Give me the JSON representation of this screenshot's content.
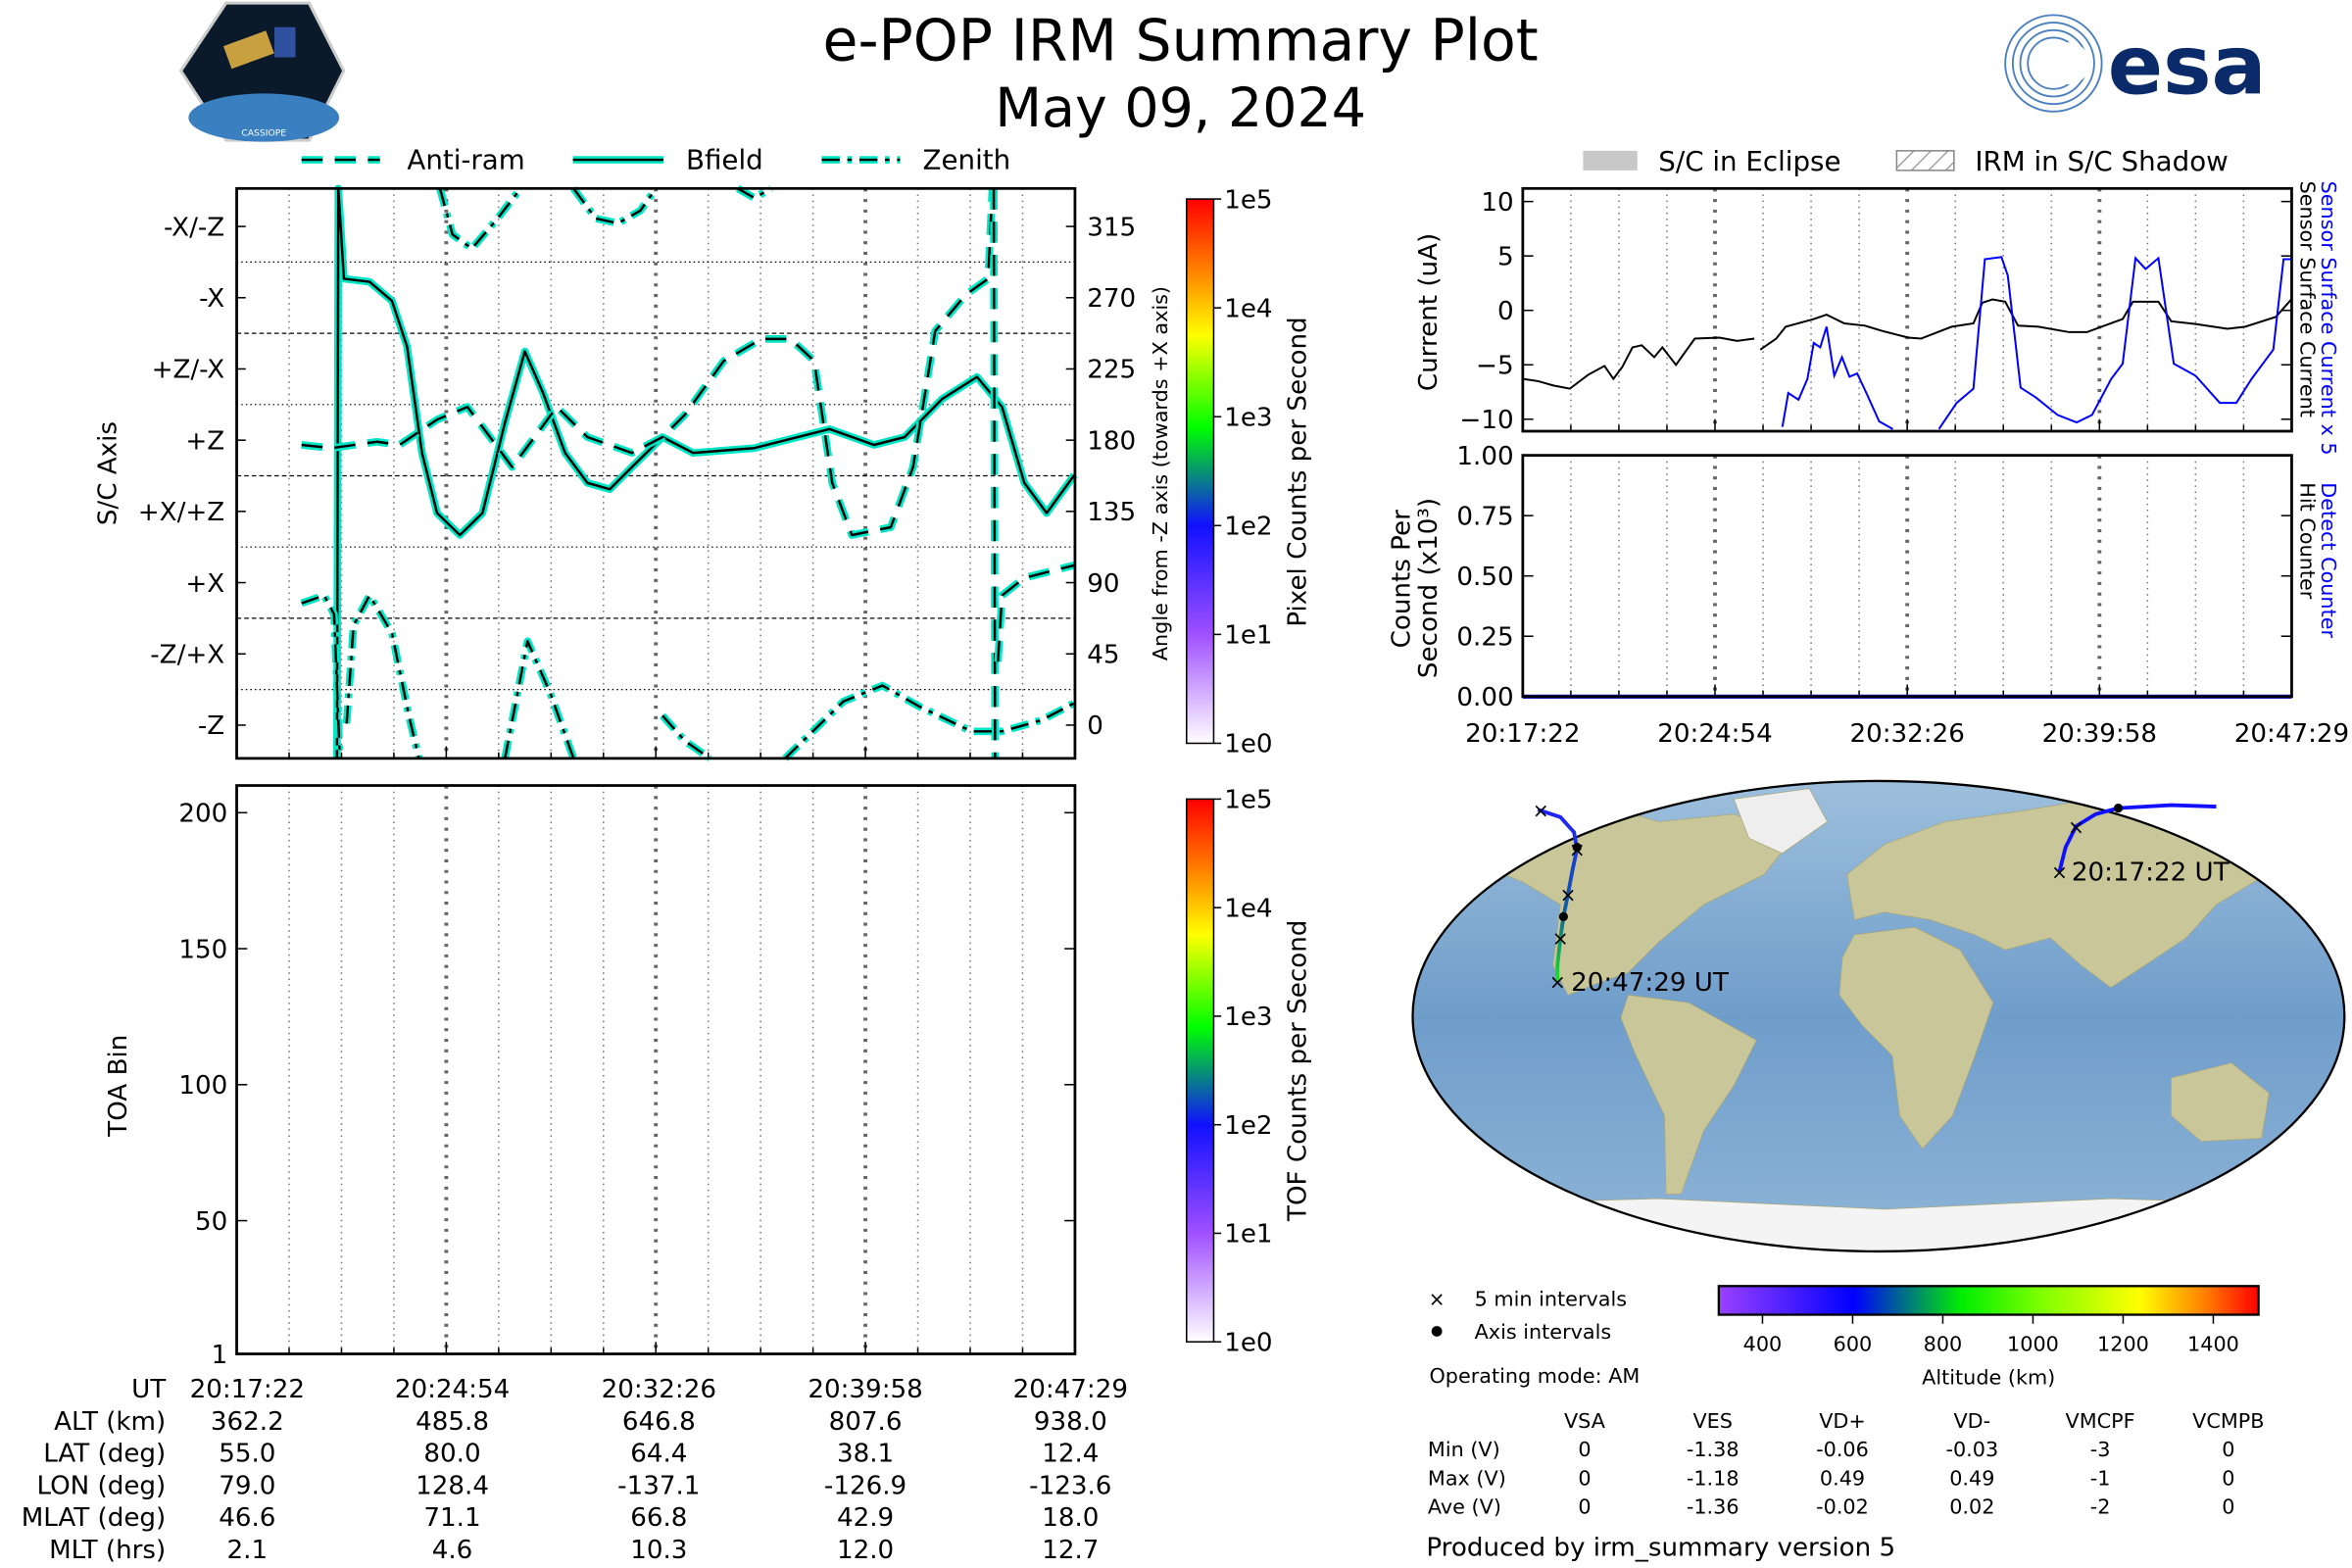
{
  "header": {
    "title": "e-POP IRM Summary Plot",
    "date": "May 09, 2024"
  },
  "logos": {
    "left": "CASSIOPE",
    "right": "esa"
  },
  "legend_top_left": [
    {
      "label": "Anti-ram",
      "style": "dashed"
    },
    {
      "label": "Bfield",
      "style": "solid"
    },
    {
      "label": "Zenith",
      "style": "dashdot"
    }
  ],
  "legend_top_right": [
    {
      "label": "S/C in Eclipse",
      "color": "#c8c8c8"
    },
    {
      "label": "IRM in S/C Shadow",
      "pattern": "hatch"
    }
  ],
  "colors": {
    "trace_outline": "#00e5c4",
    "blue": "#0000ff",
    "ocean": "#7fa9cf",
    "land": "#c9c79a"
  },
  "time_ticks": [
    "20:17:22",
    "20:24:54",
    "20:32:26",
    "20:39:58",
    "20:47:29"
  ],
  "chart_data": [
    {
      "id": "attitude",
      "type": "line",
      "ylabel": "S/C Axis",
      "ylabel_right": "Angle from -Z axis (towards +X axis)",
      "x_unit": "minutes after 20:17:22",
      "xlim": [
        0,
        30.12
      ],
      "ylim": [
        -21,
        339
      ],
      "yticks": [
        0,
        45,
        90,
        135,
        180,
        225,
        270,
        315
      ],
      "yticklabels_left": [
        "-Z",
        "-Z/+X",
        "+X",
        "+X/+Z",
        "+Z",
        "+Z/-X",
        "-X",
        "-X/-Z"
      ],
      "yticklabels_right": [
        "0",
        "45",
        "90",
        "135",
        "180",
        "225",
        "270",
        "315"
      ],
      "colorbar": {
        "label": "Pixel Counts per Second",
        "ticks": [
          "1e0",
          "1e1",
          "1e2",
          "1e3",
          "1e4",
          "1e5"
        ]
      },
      "series": [
        {
          "name": "Bfield",
          "style": "solid",
          "points": [
            [
              3.6,
              -21
            ],
            [
              3.65,
              339
            ],
            [
              3.85,
              282
            ],
            [
              4.77,
              280
            ],
            [
              5.58,
              268
            ],
            [
              6.12,
              239
            ],
            [
              6.66,
              172
            ],
            [
              7.2,
              134
            ],
            [
              8.02,
              120
            ],
            [
              8.83,
              134
            ],
            [
              9.64,
              191
            ],
            [
              10.35,
              236
            ],
            [
              11.0,
              210
            ],
            [
              11.8,
              172
            ],
            [
              12.6,
              153
            ],
            [
              13.4,
              149
            ],
            [
              14.2,
              163
            ],
            [
              15.3,
              182
            ],
            [
              16.4,
              172
            ],
            [
              18.6,
              175
            ],
            [
              21.3,
              187
            ],
            [
              22.9,
              177
            ],
            [
              24.0,
              182
            ],
            [
              25.35,
              206
            ],
            [
              26.6,
              220
            ],
            [
              27.5,
              201
            ],
            [
              28.3,
              153
            ],
            [
              29.1,
              134
            ],
            [
              30.1,
              158
            ]
          ]
        },
        {
          "name": "Anti-ram",
          "style": "dashed",
          "points": [
            [
              2.33,
              177
            ],
            [
              3.41,
              175
            ],
            [
              5.04,
              179
            ],
            [
              5.85,
              177
            ],
            [
              7.2,
              193
            ],
            [
              8.29,
              201
            ],
            [
              9.1,
              182
            ],
            [
              9.9,
              163
            ],
            [
              10.7,
              182
            ],
            [
              11.5,
              201
            ],
            [
              12.6,
              182
            ],
            [
              14.2,
              172
            ],
            [
              15.3,
              182
            ],
            [
              16.1,
              196
            ],
            [
              17.5,
              230
            ],
            [
              18.85,
              244
            ],
            [
              19.9,
              244
            ],
            [
              20.75,
              230
            ],
            [
              21.4,
              153
            ],
            [
              22.1,
              120
            ],
            [
              23.5,
              125
            ],
            [
              24.3,
              163
            ],
            [
              25.1,
              249
            ],
            [
              26.2,
              272
            ],
            [
              27.0,
              282
            ],
            [
              27.15,
              339
            ],
            null,
            [
              27.2,
              339
            ],
            [
              27.25,
              -21
            ],
            null,
            [
              27.35,
              40
            ],
            [
              27.5,
              82
            ],
            [
              28.3,
              93
            ],
            [
              30.1,
              101
            ]
          ]
        },
        {
          "name": "Zenith",
          "style": "dashdot",
          "points": [
            [
              2.33,
              77
            ],
            [
              3.14,
              82
            ],
            [
              3.5,
              70
            ],
            [
              3.7,
              -18
            ],
            null,
            [
              3.95,
              1
            ],
            [
              4.2,
              63
            ],
            [
              4.77,
              82
            ],
            [
              5.58,
              58
            ],
            [
              6.2,
              5
            ],
            [
              6.55,
              -21
            ],
            null,
            [
              9.64,
              -21
            ],
            [
              10.45,
              53
            ],
            [
              11.27,
              20
            ],
            [
              12.1,
              -21
            ],
            null,
            [
              15.3,
              6
            ],
            [
              16.1,
              -10
            ],
            [
              17.0,
              -21
            ],
            null,
            [
              19.7,
              -21
            ],
            [
              21.8,
              15
            ],
            [
              23.2,
              25
            ],
            [
              24.5,
              12
            ],
            [
              26.4,
              -4
            ],
            [
              27.5,
              -4
            ],
            [
              28.9,
              3
            ],
            [
              30.1,
              14
            ],
            null,
            [
              7.3,
              339
            ],
            [
              7.75,
              310
            ],
            [
              8.45,
              301
            ],
            [
              9.37,
              320
            ],
            [
              10.2,
              339
            ],
            null,
            [
              12.1,
              339
            ],
            [
              12.9,
              320
            ],
            [
              13.7,
              317
            ],
            [
              14.5,
              325
            ],
            [
              15.06,
              339
            ],
            null,
            [
              18.0,
              339
            ],
            [
              18.6,
              333
            ],
            [
              19.2,
              339
            ]
          ]
        }
      ]
    },
    {
      "id": "toa",
      "type": "heatmap",
      "ylabel": "TOA Bin",
      "xlim": [
        0,
        30.12
      ],
      "ylim": [
        1,
        210
      ],
      "yticks": [
        1,
        50,
        100,
        150,
        200
      ],
      "yticklabels": [
        "1",
        "50",
        "100",
        "150",
        "200"
      ],
      "colorbar": {
        "label": "TOF Counts per Second",
        "ticks": [
          "1e0",
          "1e1",
          "1e2",
          "1e3",
          "1e4",
          "1e5"
        ]
      },
      "values": []
    },
    {
      "id": "current",
      "type": "line",
      "ylabel": "Current (uA)",
      "xlim": [
        0,
        30.12
      ],
      "ylim": [
        -11.1,
        11.2
      ],
      "yticks": [
        10,
        5,
        0,
        -5,
        -10
      ],
      "yticklabels": [
        "10",
        "5",
        "0",
        "−5",
        "−10"
      ],
      "right_labels": [
        "Sensor Surface Current x 5",
        "Sensor Surface Current"
      ],
      "series": [
        {
          "name": "Sensor Surface Current",
          "color": "#000000",
          "points": [
            [
              0,
              -6.3
            ],
            [
              0.6,
              -6.5
            ],
            [
              1.2,
              -6.9
            ],
            [
              1.84,
              -7.2
            ],
            [
              2.57,
              -5.9
            ],
            [
              3.2,
              -5.1
            ],
            [
              3.55,
              -6.3
            ],
            [
              3.9,
              -5.2
            ],
            [
              4.3,
              -3.4
            ],
            [
              4.66,
              -3.2
            ],
            [
              5.15,
              -4.3
            ],
            [
              5.47,
              -3.4
            ],
            [
              6.0,
              -5.0
            ],
            [
              6.74,
              -2.6
            ],
            [
              7.7,
              -2.5
            ],
            [
              8.4,
              -2.8
            ],
            [
              9.07,
              -2.6
            ],
            null,
            [
              9.3,
              -3.6
            ],
            [
              9.93,
              -2.6
            ],
            [
              10.3,
              -1.5
            ],
            [
              11.4,
              -0.8
            ],
            [
              11.9,
              -0.4
            ],
            [
              12.6,
              -1.2
            ],
            [
              13.4,
              -1.4
            ],
            [
              14.1,
              -1.9
            ],
            [
              15.1,
              -2.5
            ],
            [
              15.6,
              -2.6
            ],
            [
              16.8,
              -1.5
            ],
            [
              17.65,
              -1.2
            ],
            [
              18.0,
              0.7
            ],
            [
              18.4,
              1.0
            ],
            [
              18.9,
              0.8
            ],
            [
              19.4,
              -1.4
            ],
            [
              20.2,
              -1.5
            ],
            [
              21.4,
              -2.0
            ],
            [
              22.1,
              -2.0
            ],
            [
              23.5,
              -0.8
            ],
            [
              23.9,
              0.8
            ],
            [
              24.9,
              0.8
            ],
            [
              25.4,
              -1.0
            ],
            [
              26.35,
              -1.25
            ],
            [
              27.6,
              -1.7
            ],
            [
              28.3,
              -1.5
            ],
            [
              29.5,
              -0.6
            ],
            [
              30.1,
              1.0
            ]
          ]
        },
        {
          "name": "Sensor Surface Current x 5",
          "color": "#0000ff",
          "points": [
            [
              10.17,
              -10.7
            ],
            [
              10.4,
              -7.6
            ],
            [
              10.8,
              -8.2
            ],
            [
              11.15,
              -6.3
            ],
            [
              11.4,
              -3.0
            ],
            [
              11.65,
              -3.4
            ],
            [
              11.9,
              -1.5
            ],
            [
              12.2,
              -6.0
            ],
            [
              12.5,
              -4.3
            ],
            [
              12.8,
              -6.1
            ],
            [
              13.1,
              -5.8
            ],
            [
              13.5,
              -7.8
            ],
            [
              13.96,
              -10.2
            ],
            [
              14.5,
              -10.9
            ],
            null,
            [
              16.3,
              -10.9
            ],
            [
              17.0,
              -8.5
            ],
            [
              17.65,
              -7.2
            ],
            [
              18.1,
              4.7
            ],
            [
              18.75,
              4.9
            ],
            [
              19.0,
              3.2
            ],
            [
              19.5,
              -7.1
            ],
            [
              20.1,
              -8.0
            ],
            [
              20.95,
              -9.6
            ],
            [
              21.7,
              -10.3
            ],
            [
              22.3,
              -9.6
            ],
            [
              23.05,
              -6.3
            ],
            [
              23.5,
              -4.9
            ],
            [
              24.0,
              4.8
            ],
            [
              24.4,
              3.8
            ],
            [
              24.9,
              4.8
            ],
            [
              25.5,
              -4.9
            ],
            [
              26.35,
              -6.0
            ],
            [
              27.3,
              -8.5
            ],
            [
              27.95,
              -8.5
            ],
            [
              28.55,
              -6.3
            ],
            [
              29.4,
              -3.6
            ],
            [
              29.8,
              4.7
            ],
            [
              30.1,
              4.7
            ]
          ]
        }
      ]
    },
    {
      "id": "counts",
      "type": "line",
      "ylabel": [
        "Counts Per",
        "Second (x10³)"
      ],
      "xlim": [
        0,
        30.12
      ],
      "ylim": [
        0,
        1
      ],
      "yticks": [
        0,
        0.25,
        0.5,
        0.75,
        1.0
      ],
      "yticklabels": [
        "0.00",
        "0.25",
        "0.50",
        "0.75",
        "1.00"
      ],
      "right_labels": [
        "Detect Counter",
        "Hit Counter"
      ],
      "series": [
        {
          "name": "Hit Counter",
          "color": "#000000",
          "points": [
            [
              0,
              0
            ],
            [
              30.12,
              0
            ]
          ]
        },
        {
          "name": "Detect Counter",
          "color": "#0000ff",
          "points": [
            [
              0,
              0
            ],
            [
              30.12,
              0
            ]
          ]
        }
      ]
    }
  ],
  "ephemeris": {
    "rows": [
      {
        "label": "UT",
        "values": [
          "20:17:22",
          "20:24:54",
          "20:32:26",
          "20:39:58",
          "20:47:29"
        ]
      },
      {
        "label": "ALT (km)",
        "values": [
          "362.2",
          "485.8",
          "646.8",
          "807.6",
          "938.0"
        ]
      },
      {
        "label": "LAT (deg)",
        "values": [
          "55.0",
          "80.0",
          "64.4",
          "38.1",
          "12.4"
        ]
      },
      {
        "label": "LON (deg)",
        "values": [
          "79.0",
          "128.4",
          "-137.1",
          "-126.9",
          "-123.6"
        ]
      },
      {
        "label": "MLAT (deg)",
        "values": [
          "46.6",
          "71.1",
          "66.8",
          "42.9",
          "18.0"
        ]
      },
      {
        "label": "MLT (hrs)",
        "values": [
          "2.1",
          "4.6",
          "10.3",
          "12.0",
          "12.7"
        ]
      }
    ]
  },
  "map": {
    "start_label": "20:17:22 UT",
    "end_label": "20:47:29 UT",
    "legend": {
      "five_min": "5 min intervals",
      "axis": "Axis intervals"
    },
    "altitude_colorbar": {
      "label": "Altitude (km)",
      "ticks": [
        "400",
        "600",
        "800",
        "1000",
        "1200",
        "1400"
      ],
      "range": [
        303,
        1500
      ]
    }
  },
  "operating_mode": "Operating mode: AM",
  "voltages": {
    "columns": [
      "VSA",
      "VES",
      "VD+",
      "VD-",
      "VMCPF",
      "VCMPB"
    ],
    "rows": [
      {
        "label": "Min (V)",
        "values": [
          "0",
          "-1.38",
          "-0.06",
          "-0.03",
          "-3",
          "0"
        ]
      },
      {
        "label": "Max (V)",
        "values": [
          "0",
          "-1.18",
          "0.49",
          "0.49",
          "-1",
          "0"
        ]
      },
      {
        "label": "Ave (V)",
        "values": [
          "0",
          "-1.36",
          "-0.02",
          "0.02",
          "-2",
          "0"
        ]
      }
    ]
  },
  "footer": "Produced by irm_summary version 5"
}
